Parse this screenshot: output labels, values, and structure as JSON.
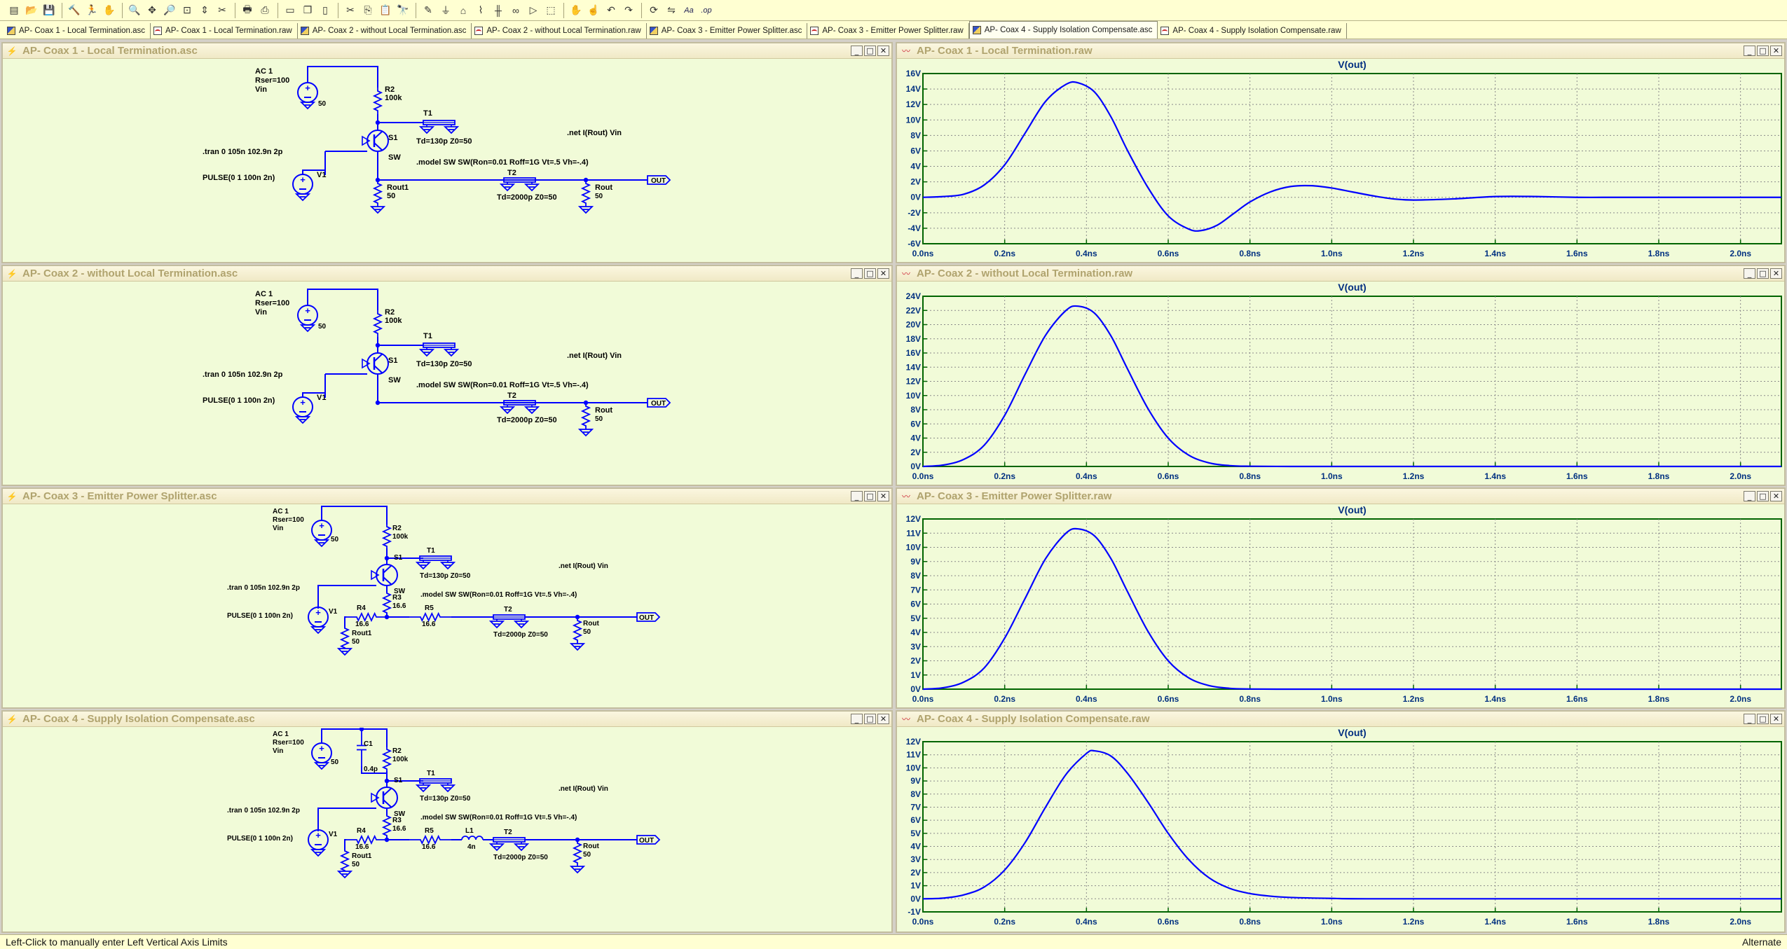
{
  "toolbar": {
    "icons": [
      "new-schematic-icon",
      "open-icon",
      "save-icon",
      "control-panel-icon",
      "run-icon",
      "halt-icon",
      "zoom-in-icon",
      "pan-icon",
      "zoom-out-icon",
      "zoom-fit-icon",
      "autorange-icon",
      "delete-icon",
      "print-icon",
      "print-preview-icon",
      "tile-horizontal-icon",
      "cascade-icon",
      "tile-vertical-icon",
      "cut-icon",
      "copy-icon",
      "paste-icon",
      "find-icon",
      "wire-icon",
      "ground-icon",
      "label-net-icon",
      "resistor-icon",
      "capacitor-icon",
      "inductor-icon",
      "diode-icon",
      "component-icon",
      "move-icon",
      "drag-icon",
      "undo-icon",
      "redo-icon",
      "rotate-icon",
      "mirror-icon",
      "text-icon",
      "spice-directive-icon"
    ]
  },
  "tabs": [
    {
      "label": "AP- Coax 1 - Local Termination.asc",
      "kind": "sch"
    },
    {
      "label": "AP- Coax 1 - Local Termination.raw",
      "kind": "wav"
    },
    {
      "label": "AP- Coax 2 - without Local Termination.asc",
      "kind": "sch"
    },
    {
      "label": "AP- Coax 2 - without Local Termination.raw",
      "kind": "wav"
    },
    {
      "label": "AP- Coax 3 - Emitter Power Splitter.asc",
      "kind": "sch"
    },
    {
      "label": "AP- Coax 3 - Emitter Power Splitter.raw",
      "kind": "wav"
    },
    {
      "label": "AP- Coax 4 - Supply Isolation Compensate.asc",
      "kind": "sch",
      "active": true
    },
    {
      "label": "AP- Coax 4 - Supply Isolation Compensate.raw",
      "kind": "wav"
    }
  ],
  "window_buttons": {
    "minimize": "_",
    "maximize": "□",
    "close": "✕"
  },
  "schematics": [
    {
      "title": "AP- Coax 1 - Local Termination.asc",
      "variant": 1,
      "labels": {
        "ac": "AC 1",
        "rser": "Rser=100",
        "vin": "Vin",
        "vin_r": "50",
        "r2": "R2",
        "r2v": "100k",
        "t1": "T1",
        "t1v": "Td=130p Z0=50",
        "s1": "S1",
        "sw": "SW",
        "tran": ".tran 0 105n 102.9n 2p",
        "pulse": "PULSE(0 1 100n 2n)",
        "v1": "V1",
        "rout1": "Rout1",
        "rout1v": "50",
        "t2": "T2",
        "t2v": "Td=2000p Z0=50",
        "rout": "Rout",
        "routv": "50",
        "out": "OUT",
        "net": ".net I(Rout) Vin",
        "model": ".model SW SW(Ron=0.01 Roff=1G Vt=.5 Vh=-.4)"
      }
    },
    {
      "title": "AP- Coax 2 - without Local Termination.asc",
      "variant": 2,
      "labels": {
        "ac": "AC 1",
        "rser": "Rser=100",
        "vin": "Vin",
        "vin_r": "50",
        "r2": "R2",
        "r2v": "100k",
        "t1": "T1",
        "t1v": "Td=130p Z0=50",
        "s1": "S1",
        "sw": "SW",
        "tran": ".tran 0 105n 102.9n 2p",
        "pulse": "PULSE(0 1 100n 2n)",
        "v1": "V1",
        "t2": "T2",
        "t2v": "Td=2000p Z0=50",
        "rout": "Rout",
        "routv": "50",
        "out": "OUT",
        "net": ".net I(Rout) Vin",
        "model": ".model SW SW(Ron=0.01 Roff=1G Vt=.5 Vh=-.4)"
      }
    },
    {
      "title": "AP- Coax 3 - Emitter Power Splitter.asc",
      "variant": 3,
      "labels": {
        "ac": "AC 1",
        "rser": "Rser=100",
        "vin": "Vin",
        "vin_r": "50",
        "r2": "R2",
        "r2v": "100k",
        "t1": "T1",
        "t1v": "Td=130p Z0=50",
        "s1": "S1",
        "sw": "SW",
        "r3": "R3",
        "r3v": "16.6",
        "r4": "R4",
        "r4v": "16.6",
        "r5": "R5",
        "r5v": "16.6",
        "tran": ".tran 0 105n 102.9n 2p",
        "pulse": "PULSE(0 1 100n 2n)",
        "v1": "V1",
        "rout1": "Rout1",
        "rout1v": "50",
        "t2": "T2",
        "t2v": "Td=2000p Z0=50",
        "rout": "Rout",
        "routv": "50",
        "out": "OUT",
        "net": ".net I(Rout) Vin",
        "model": ".model SW SW(Ron=0.01 Roff=1G Vt=.5 Vh=-.4)"
      }
    },
    {
      "title": "AP- Coax 4 - Supply Isolation Compensate.asc",
      "variant": 4,
      "labels": {
        "ac": "AC 1",
        "rser": "Rser=100",
        "vin": "Vin",
        "vin_r": "50",
        "c1": "C1",
        "c1v": "0.4p",
        "r2": "R2",
        "r2v": "100k",
        "t1": "T1",
        "t1v": "Td=130p Z0=50",
        "s1": "S1",
        "sw": "SW",
        "r3": "R3",
        "r3v": "16.6",
        "r4": "R4",
        "r4v": "16.6",
        "r5": "R5",
        "r5v": "16.6",
        "l1": "L1",
        "l1v": "4n",
        "tran": ".tran 0 105n 102.9n 2p",
        "pulse": "PULSE(0 1 100n 2n)",
        "v1": "V1",
        "rout1": "Rout1",
        "rout1v": "50",
        "t2": "T2",
        "t2v": "Td=2000p Z0=50",
        "rout": "Rout",
        "routv": "50",
        "out": "OUT",
        "net": ".net I(Rout) Vin",
        "model": ".model SW SW(Ron=0.01 Roff=1G Vt=.5 Vh=-.4)"
      }
    }
  ],
  "plots": [
    {
      "title": "AP- Coax 1 - Local Termination.raw"
    },
    {
      "title": "AP- Coax 2 - without Local Termination.raw"
    },
    {
      "title": "AP- Coax 3 - Emitter Power Splitter.raw"
    },
    {
      "title": "AP- Coax 4 - Supply Isolation Compensate.raw"
    }
  ],
  "chart_data": [
    {
      "type": "line",
      "title": "V(out)",
      "ylim": [
        -6,
        16
      ],
      "xlim": [
        0,
        2.1
      ],
      "grid": true,
      "x_ticks": [
        "0.0ns",
        "0.2ns",
        "0.4ns",
        "0.6ns",
        "0.8ns",
        "1.0ns",
        "1.2ns",
        "1.4ns",
        "1.6ns",
        "1.8ns",
        "2.0ns"
      ],
      "y_ticks": [
        "16V",
        "14V",
        "12V",
        "10V",
        "8V",
        "6V",
        "4V",
        "2V",
        "0V",
        "-2V",
        "-4V",
        "-6V"
      ],
      "x": [
        0,
        0.05,
        0.1,
        0.15,
        0.2,
        0.25,
        0.3,
        0.35,
        0.38,
        0.42,
        0.46,
        0.5,
        0.55,
        0.6,
        0.65,
        0.68,
        0.72,
        0.76,
        0.8,
        0.85,
        0.9,
        0.95,
        1.0,
        1.05,
        1.1,
        1.15,
        1.2,
        1.3,
        1.4,
        1.5,
        1.6,
        1.7,
        1.8,
        1.9,
        2.0,
        2.1
      ],
      "series": [
        {
          "values": [
            0,
            0.1,
            0.4,
            1.6,
            4.2,
            8.3,
            12.4,
            14.6,
            14.8,
            13.6,
            10.4,
            6.1,
            1.3,
            -2.4,
            -4.1,
            -4.3,
            -3.6,
            -2.1,
            -0.6,
            0.7,
            1.4,
            1.5,
            1.2,
            0.7,
            0.2,
            -0.2,
            -0.35,
            -0.2,
            0.1,
            0.1,
            0,
            0,
            0,
            0,
            0,
            0
          ],
          "color": "#0000ff"
        }
      ]
    },
    {
      "type": "line",
      "title": "V(out)",
      "ylim": [
        0,
        24
      ],
      "xlim": [
        0,
        2.1
      ],
      "grid": true,
      "x_ticks": [
        "0.0ns",
        "0.2ns",
        "0.4ns",
        "0.6ns",
        "0.8ns",
        "1.0ns",
        "1.2ns",
        "1.4ns",
        "1.6ns",
        "1.8ns",
        "2.0ns"
      ],
      "y_ticks": [
        "24V",
        "22V",
        "20V",
        "18V",
        "16V",
        "14V",
        "12V",
        "10V",
        "8V",
        "6V",
        "4V",
        "2V",
        "0V"
      ],
      "x": [
        0,
        0.05,
        0.1,
        0.15,
        0.2,
        0.25,
        0.3,
        0.35,
        0.38,
        0.42,
        0.46,
        0.5,
        0.55,
        0.6,
        0.65,
        0.7,
        0.75,
        0.8,
        0.9,
        1.0,
        1.5,
        2.1
      ],
      "series": [
        {
          "values": [
            0,
            0.2,
            1.0,
            3.0,
            7.2,
            13.0,
            18.5,
            22.0,
            22.6,
            21.6,
            18.4,
            13.8,
            8.2,
            4.0,
            1.6,
            0.5,
            0.12,
            0.03,
            0,
            0,
            0,
            0
          ],
          "color": "#0000ff"
        }
      ]
    },
    {
      "type": "line",
      "title": "V(out)",
      "ylim": [
        0,
        12
      ],
      "xlim": [
        0,
        2.1
      ],
      "grid": true,
      "x_ticks": [
        "0.0ns",
        "0.2ns",
        "0.4ns",
        "0.6ns",
        "0.8ns",
        "1.0ns",
        "1.2ns",
        "1.4ns",
        "1.6ns",
        "1.8ns",
        "2.0ns"
      ],
      "y_ticks": [
        "12V",
        "11V",
        "10V",
        "9V",
        "8V",
        "7V",
        "6V",
        "5V",
        "4V",
        "3V",
        "2V",
        "1V",
        "0V"
      ],
      "x": [
        0,
        0.05,
        0.1,
        0.15,
        0.2,
        0.25,
        0.3,
        0.35,
        0.38,
        0.42,
        0.46,
        0.5,
        0.55,
        0.6,
        0.65,
        0.7,
        0.75,
        0.8,
        0.9,
        1.0,
        1.5,
        2.1
      ],
      "series": [
        {
          "values": [
            0,
            0.1,
            0.5,
            1.5,
            3.6,
            6.4,
            9.2,
            11.0,
            11.3,
            10.8,
            9.2,
            6.9,
            4.1,
            2.0,
            0.8,
            0.25,
            0.06,
            0.01,
            0,
            0,
            0,
            0
          ],
          "color": "#0000ff"
        }
      ]
    },
    {
      "type": "line",
      "title": "V(out)",
      "ylim": [
        -1,
        12
      ],
      "xlim": [
        0,
        2.1
      ],
      "grid": true,
      "x_ticks": [
        "0.0ns",
        "0.2ns",
        "0.4ns",
        "0.6ns",
        "0.8ns",
        "1.0ns",
        "1.2ns",
        "1.4ns",
        "1.6ns",
        "1.8ns",
        "2.0ns"
      ],
      "y_ticks": [
        "12V",
        "11V",
        "10V",
        "9V",
        "8V",
        "7V",
        "6V",
        "5V",
        "4V",
        "3V",
        "2V",
        "1V",
        "0V",
        "-1V"
      ],
      "x": [
        0,
        0.05,
        0.1,
        0.15,
        0.2,
        0.25,
        0.3,
        0.35,
        0.4,
        0.42,
        0.46,
        0.5,
        0.55,
        0.6,
        0.65,
        0.7,
        0.75,
        0.8,
        0.85,
        0.9,
        1.0,
        1.1,
        1.5,
        2.1
      ],
      "series": [
        {
          "values": [
            0,
            0.05,
            0.3,
            0.9,
            2.2,
            4.3,
            7.0,
            9.5,
            11.1,
            11.3,
            10.9,
            9.6,
            7.4,
            5.0,
            3.0,
            1.6,
            0.8,
            0.4,
            0.2,
            0.1,
            0.03,
            0,
            0,
            0
          ],
          "color": "#0000ff"
        }
      ]
    }
  ],
  "status": {
    "left": "Left-Click to manually enter Left Vertical Axis Limits",
    "right": "Alternate"
  }
}
